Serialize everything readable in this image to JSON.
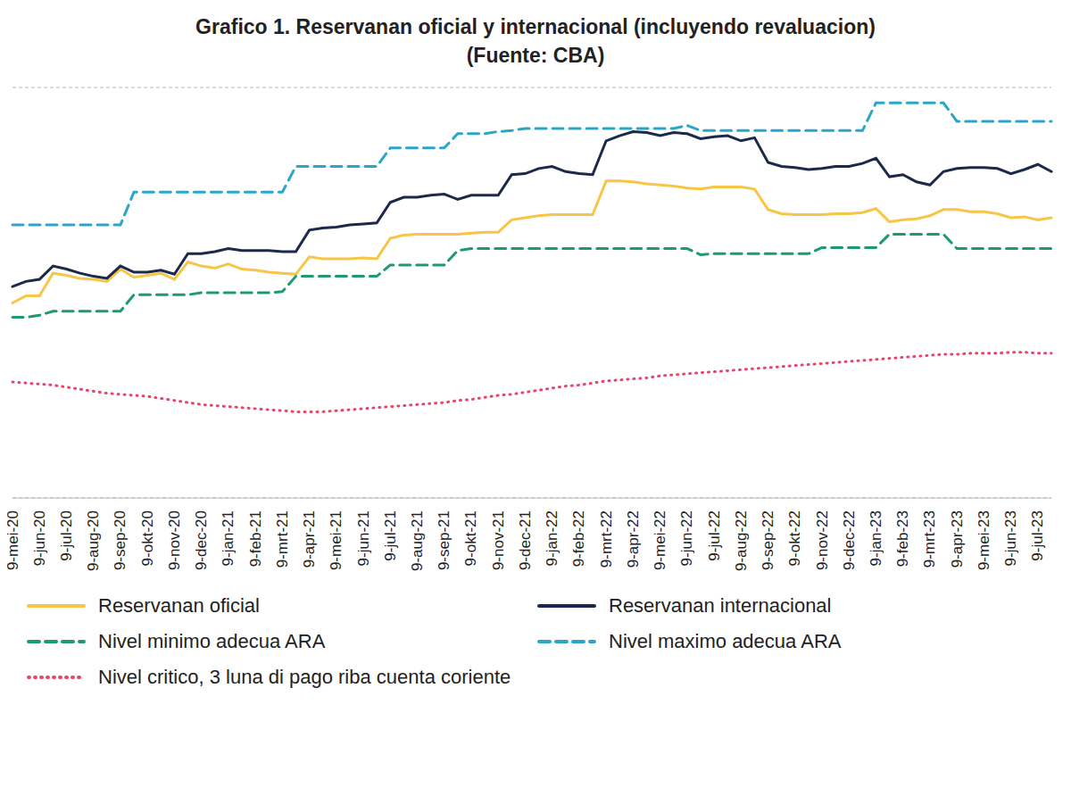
{
  "chart_data": {
    "type": "line",
    "title": "Grafico 1. Reservanan oficial y internacional (incluyendo revaluacion)",
    "subtitle": "(Fuente: CBA)",
    "categories": [
      "9-mei-20",
      null,
      "9-jun-20",
      null,
      "9-jul-20",
      null,
      "9-aug-20",
      null,
      "9-sep-20",
      null,
      "9-okt-20",
      null,
      "9-nov-20",
      null,
      "9-dec-20",
      null,
      "9-jan-21",
      null,
      "9-feb-21",
      null,
      "9-mrt-21",
      null,
      "9-apr-21",
      null,
      "9-mei-21",
      null,
      "9-jun-21",
      null,
      "9-jul-21",
      null,
      "9-aug-21",
      null,
      "9-sep-21",
      null,
      "9-okt-21",
      null,
      "9-nov-21",
      null,
      "9-dec-21",
      null,
      "9-jan-22",
      null,
      "9-feb-22",
      null,
      "9-mrt-22",
      null,
      "9-apr-22",
      null,
      "9-mei-22",
      null,
      "9-jun-22",
      null,
      "9-jul-22",
      null,
      "9-aug-22",
      null,
      "9-sep-22",
      null,
      "9-okt-22",
      null,
      "9-nov-22",
      null,
      "9-dec-22",
      null,
      "9-jan-23",
      null,
      "9-feb-23",
      null,
      "9-mrt-23",
      null,
      "9-apr-23",
      null,
      "9-mei-23",
      null,
      "9-jun-23",
      null,
      "9-jul-23",
      null
    ],
    "series": [
      {
        "name": "Reservanan oficial",
        "color": "#f7c548",
        "line_style": "solid",
        "values": [
          190,
          197,
          197,
          219,
          217,
          214,
          213,
          211,
          223,
          215,
          217,
          219,
          213,
          230,
          226,
          224,
          228,
          223,
          222,
          220,
          219,
          218,
          235,
          233,
          233,
          233,
          234,
          233,
          253,
          256,
          257,
          257,
          257,
          257,
          258,
          259,
          259,
          271,
          273,
          275,
          276,
          276,
          276,
          276,
          309,
          309,
          308,
          306,
          305,
          304,
          302,
          301,
          303,
          303,
          303,
          301,
          281,
          277,
          276,
          276,
          276,
          277,
          277,
          278,
          282,
          269,
          271,
          272,
          275,
          281,
          281,
          279,
          279,
          277,
          273,
          274,
          271,
          273
        ]
      },
      {
        "name": "Reservanan internacional",
        "color": "#1b2a4a",
        "line_style": "solid",
        "values": [
          206,
          211,
          213,
          226,
          223,
          219,
          216,
          214,
          226,
          220,
          220,
          222,
          218,
          238,
          238,
          240,
          243,
          241,
          241,
          241,
          240,
          240,
          261,
          263,
          264,
          266,
          267,
          268,
          288,
          293,
          293,
          295,
          296,
          291,
          295,
          295,
          295,
          315,
          316,
          321,
          323,
          318,
          316,
          315,
          348,
          353,
          357,
          356,
          353,
          356,
          355,
          350,
          352,
          353,
          348,
          351,
          327,
          323,
          322,
          320,
          321,
          323,
          323,
          326,
          331,
          313,
          315,
          308,
          305,
          318,
          321,
          322,
          322,
          321,
          316,
          320,
          325,
          318
        ]
      },
      {
        "name": "Nivel minimo adecua ARA",
        "color": "#1e9a6e",
        "line_style": "dashed",
        "values": [
          176,
          176,
          178,
          182,
          182,
          182,
          182,
          182,
          182,
          198,
          198,
          198,
          198,
          198,
          200,
          200,
          200,
          200,
          200,
          200,
          201,
          216,
          216,
          216,
          216,
          216,
          216,
          216,
          227,
          227,
          227,
          227,
          227,
          241,
          243,
          243,
          243,
          243,
          243,
          243,
          243,
          243,
          243,
          243,
          243,
          243,
          243,
          243,
          243,
          243,
          243,
          237,
          238,
          238,
          238,
          238,
          238,
          238,
          238,
          238,
          244,
          244,
          244,
          244,
          244,
          257,
          257,
          257,
          257,
          257,
          243,
          243,
          243,
          243,
          243,
          243,
          243,
          243
        ]
      },
      {
        "name": "Nivel maximo adecua ARA",
        "color": "#2ba6c9",
        "line_style": "dashed",
        "values": [
          266,
          266,
          266,
          266,
          266,
          266,
          266,
          266,
          266,
          298,
          298,
          298,
          298,
          298,
          298,
          298,
          298,
          298,
          298,
          298,
          298,
          323,
          323,
          323,
          323,
          323,
          323,
          323,
          341,
          341,
          341,
          341,
          341,
          355,
          355,
          355,
          357,
          358,
          360,
          360,
          360,
          360,
          360,
          360,
          360,
          360,
          360,
          360,
          360,
          360,
          363,
          358,
          358,
          358,
          358,
          358,
          358,
          358,
          358,
          358,
          358,
          358,
          358,
          358,
          385,
          385,
          385,
          385,
          385,
          385,
          367,
          367,
          367,
          367,
          367,
          367,
          367,
          367
        ]
      },
      {
        "name": "Nivel critico, 3 luna di pago riba cuenta coriente",
        "color": "#e8446a",
        "line_style": "dotted",
        "values": [
          113,
          112,
          111,
          110,
          108,
          106,
          104,
          102,
          101,
          100,
          99,
          97,
          95,
          93,
          91,
          90,
          89,
          88,
          87,
          86,
          85,
          84,
          84,
          84,
          85,
          86,
          87,
          88,
          89,
          90,
          91,
          92,
          93,
          95,
          96,
          98,
          100,
          101,
          103,
          105,
          107,
          109,
          110,
          112,
          114,
          115,
          116,
          117,
          119,
          120,
          121,
          122,
          123,
          124,
          125,
          126,
          127,
          128,
          129,
          130,
          131,
          132,
          133,
          134,
          135,
          136,
          137,
          138,
          139,
          140,
          140,
          141,
          141,
          141,
          142,
          142,
          141,
          141
        ]
      }
    ],
    "ylim": [
      0,
      400
    ],
    "yticks": [
      0,
      50,
      100,
      150,
      200,
      250,
      300,
      350,
      400
    ],
    "grid": true,
    "tick_labels": "x",
    "legend": "bottom"
  }
}
